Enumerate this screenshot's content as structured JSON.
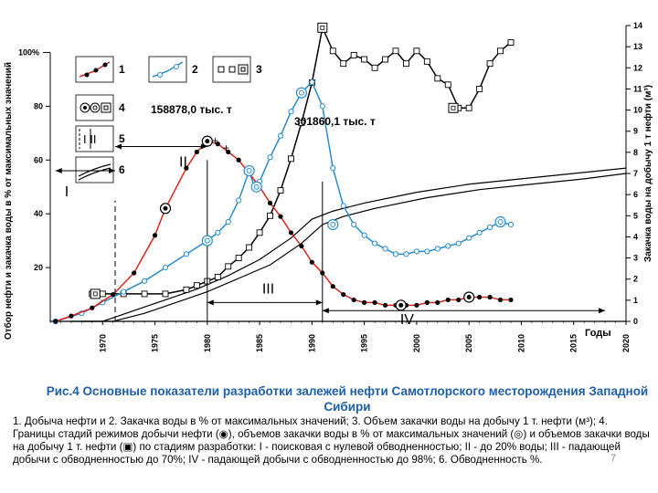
{
  "chart_data": {
    "type": "line",
    "x_range": [
      1965,
      2020
    ],
    "x_ticks": [
      1970,
      1975,
      1980,
      1985,
      1990,
      1995,
      2000,
      2005,
      2010,
      2015,
      2020
    ],
    "left_axis": {
      "label": "Отбор нефти и закачка воды в % от максимальных значений",
      "range": [
        0,
        110
      ],
      "ticks": [
        20,
        40,
        60,
        80
      ],
      "top_tick_label": "100%"
    },
    "right_axis": {
      "label": "Закачка воды на добычу 1 т нефти (м³)",
      "range": [
        0,
        14
      ],
      "ticks": [
        0,
        1,
        2,
        3,
        4,
        5,
        6,
        7,
        8,
        9,
        10,
        11,
        12,
        13,
        14
      ]
    },
    "xlabel": "Годы",
    "series": [
      {
        "id": "1",
        "axis": "left",
        "color": "#d7261e",
        "x": [
          1965.5,
          1967,
          1969,
          1971,
          1973,
          1975,
          1976,
          1978,
          1979,
          1980,
          1981,
          1982,
          1983,
          1984,
          1985,
          1986,
          1987,
          1988,
          1989,
          1990,
          1991,
          1992,
          1993,
          1994,
          1995,
          1996,
          1997,
          1998,
          1999,
          2000,
          2001,
          2002,
          2003,
          2004,
          2005,
          2006,
          2007,
          2008,
          2009
        ],
        "y": [
          0,
          2,
          5,
          10,
          18,
          32,
          42,
          57,
          63,
          67,
          66,
          63,
          60,
          55,
          50,
          44,
          39,
          33,
          28,
          22,
          18,
          13,
          10,
          8,
          7,
          7,
          6,
          6,
          6,
          6,
          7,
          7,
          8,
          8,
          9,
          9,
          9,
          8,
          8
        ]
      },
      {
        "id": "2",
        "axis": "left",
        "color": "#2a8ccc",
        "x": [
          1965.5,
          1968,
          1970,
          1972,
          1974,
          1976,
          1978,
          1980,
          1981,
          1982,
          1983,
          1984,
          1984.5,
          1985,
          1986,
          1987,
          1988,
          1989,
          1990,
          1991,
          1992,
          1993,
          1994,
          1995,
          1996,
          1997,
          1998,
          1999,
          2000,
          2001,
          2002,
          2003,
          2004,
          2005,
          2006,
          2007,
          2008,
          2009
        ],
        "y": [
          0,
          3,
          7,
          11,
          15,
          20,
          25,
          30,
          33,
          37,
          45,
          56,
          50,
          52,
          61,
          69,
          78,
          85,
          89,
          80,
          57,
          43,
          36,
          32,
          29,
          27,
          25,
          25,
          26,
          26,
          27,
          28,
          29,
          31,
          33,
          35,
          37,
          36
        ]
      },
      {
        "id": "3",
        "axis": "right",
        "color": "#000000",
        "x": [
          1969,
          1970,
          1972,
          1974,
          1976,
          1978,
          1979,
          1980,
          1981,
          1982,
          1983,
          1984,
          1985,
          1986,
          1987,
          1988,
          1989,
          1990,
          1991,
          1992,
          1993,
          1994,
          1995,
          1996,
          1997,
          1998,
          1999,
          2000,
          2001,
          2002,
          2003,
          2004,
          2005,
          2006,
          2007,
          2008,
          2009
        ],
        "y": [
          1.3,
          1.3,
          1.3,
          1.3,
          1.3,
          1.5,
          1.7,
          1.9,
          2.1,
          2.6,
          3.0,
          3.5,
          4.2,
          5.0,
          6.2,
          7.7,
          9.4,
          11.3,
          13.9,
          12.8,
          12.2,
          12.6,
          12.4,
          12.0,
          12.4,
          12.8,
          12.2,
          12.8,
          12.3,
          11.5,
          11.2,
          10.1,
          10.1,
          11.0,
          12.2,
          12.8,
          13.2
        ]
      },
      {
        "id": "6a",
        "axis": "left",
        "color": "#000000",
        "x": [
          1967,
          1970,
          1973,
          1976,
          1979,
          1982,
          1985,
          1988,
          1990,
          1992,
          1995,
          2000,
          2005,
          2010,
          2015,
          2020
        ],
        "y": [
          0,
          0,
          4,
          8,
          12,
          17,
          23,
          31,
          38,
          41,
          44,
          48,
          51,
          53,
          55,
          57
        ]
      },
      {
        "id": "6b",
        "axis": "left",
        "color": "#000000",
        "x": [
          1968,
          1971,
          1974,
          1977,
          1980,
          1983,
          1986,
          1989,
          1991,
          1993,
          1996,
          2001,
          2006,
          2011,
          2016,
          2020
        ],
        "y": [
          0,
          0,
          3,
          7,
          11,
          16,
          21,
          29,
          36,
          39,
          42,
          46,
          49,
          51,
          53,
          55
        ]
      }
    ],
    "stages": [
      {
        "label": "I",
        "from": 1965.5,
        "to": 1971.2
      },
      {
        "label": "II",
        "from": 1971.2,
        "to": 1980
      },
      {
        "label": "III",
        "from": 1980,
        "to": 1991
      },
      {
        "label": "IV",
        "from": 1991,
        "to": 2018
      }
    ],
    "annotations": {
      "peak_oil": "158878,0 тыс. т",
      "peak_water": "301860,1 тыс. т",
      "plus": "+"
    },
    "legend": [
      {
        "num": "1",
        "kind": "red-line"
      },
      {
        "num": "2",
        "kind": "blue-line"
      },
      {
        "num": "3",
        "kind": "squares"
      },
      {
        "num": "4",
        "kind": "circles"
      },
      {
        "num": "5",
        "kind": "bars",
        "text": "I II"
      },
      {
        "num": "6",
        "kind": "double-line"
      }
    ]
  },
  "caption": {
    "title": "Рис.4  Основные показатели разработки залежей нефти Самотлорского месторождения Западной Сибири",
    "body": "1. Добыча нефти и 2. Закачка воды в % от максимальных значений; 3. Объем закачки воды на добычу 1 т. нефти (м³); 4. Границы стадий режимов добычи нефти (◉), объемов закачки воды в % от максимальных значений (◎) и объемов закачки воды  на добычу 1 т. нефти (▣) по стадиям разработки: I - поисковая с нулевой обводненностью; II - до 20% воды; III - падающей добычи с обводненностью до 70%; IV - падающей добычи с обводненностью до 98%; 6. Обводненность %."
  },
  "page_number": "7"
}
